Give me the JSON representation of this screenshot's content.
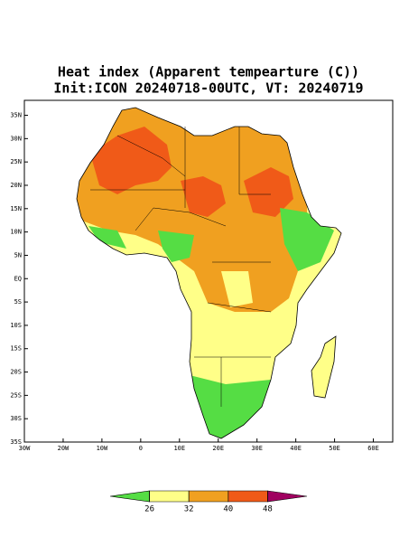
{
  "map": {
    "title": "Heat index (Apparent tempearture (C))",
    "subtitle": "Init:ICON 20240718-00UTC, VT: 20240719",
    "lonlim": [
      -30,
      65
    ],
    "latlim": [
      -35,
      38.2
    ],
    "lon_ticks": [
      {
        "value": -30,
        "label": "30W"
      },
      {
        "value": -20,
        "label": "20W"
      },
      {
        "value": -10,
        "label": "10W"
      },
      0,
      {
        "value": 10,
        "label": "10E"
      },
      {
        "value": 20,
        "label": "20E"
      },
      {
        "value": 30,
        "label": "30E"
      },
      {
        "value": 40,
        "label": "40E"
      },
      {
        "value": 50,
        "label": "50E"
      },
      {
        "value": 60,
        "label": "60E"
      }
    ],
    "lat_ticks": [
      {
        "value": 35,
        "label": "35N"
      },
      {
        "value": 30,
        "label": "30N"
      },
      {
        "value": 25,
        "label": "25N"
      },
      {
        "value": 20,
        "label": "20N"
      },
      {
        "value": 15,
        "label": "15N"
      },
      {
        "value": 10,
        "label": "10N"
      },
      {
        "value": 5,
        "label": "5N"
      },
      {
        "value": 0,
        "label": "EQ"
      },
      {
        "value": -5,
        "label": "5S"
      },
      {
        "value": -10,
        "label": "10S"
      },
      {
        "value": -15,
        "label": "15S"
      },
      {
        "value": -20,
        "label": "20S"
      },
      {
        "value": -25,
        "label": "25S"
      },
      {
        "value": -30,
        "label": "30S"
      },
      {
        "value": -35,
        "label": "35S"
      }
    ],
    "colorbar": {
      "levels": [
        26,
        32,
        40,
        48
      ],
      "colors": [
        "#55dd44",
        "#ffff88",
        "#f0a020",
        "#f05a18",
        "#a00060"
      ]
    }
  }
}
